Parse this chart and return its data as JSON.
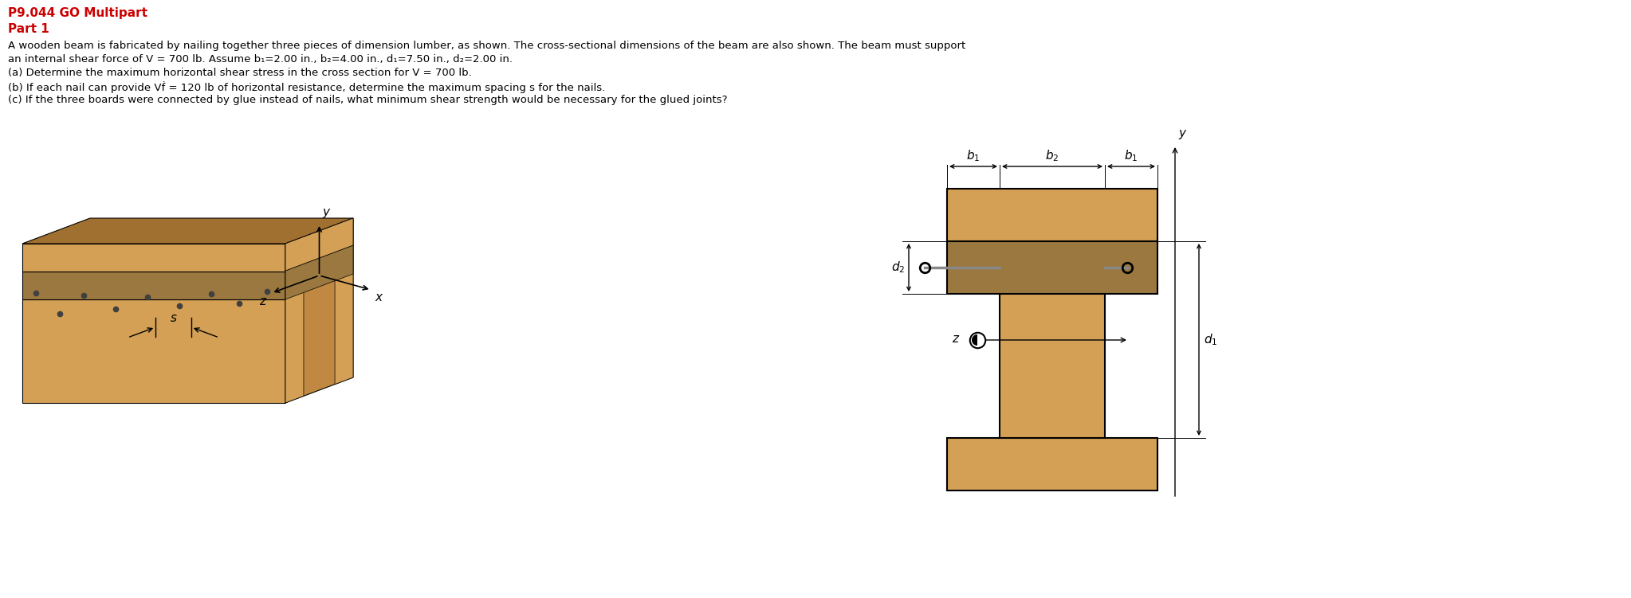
{
  "title": "P9.044 GO Multipart",
  "part": "Part 1",
  "body_lines": [
    "A wooden beam is fabricated by nailing together three pieces of dimension lumber, as shown. The cross-sectional dimensions of the beam are also shown. The beam must support",
    "an internal shear force of V = 700 lb. Assume b₁=2.00 in., b₂=4.00 in., d₁=7.50 in., d₂=2.00 in.",
    "(a) Determine the maximum horizontal shear stress in the cross section for V = 700 lb.",
    "(b) If each nail can provide Vḟ = 120 lb of horizontal resistance, determine the maximum spacing s for the nails.",
    "(c) If the three boards were connected by glue instead of nails, what minimum shear strength would be necessary for the glued joints?"
  ],
  "wood_face": "#D4A055",
  "wood_top": "#A07030",
  "wood_side": "#C08840",
  "wood_dark_face": "#9A7840",
  "wood_dark_top": "#7A5820",
  "wood_dark_side": "#8A6830",
  "background": "#FFFFFF",
  "text_color": "#000000",
  "title_color": "#CC0000"
}
